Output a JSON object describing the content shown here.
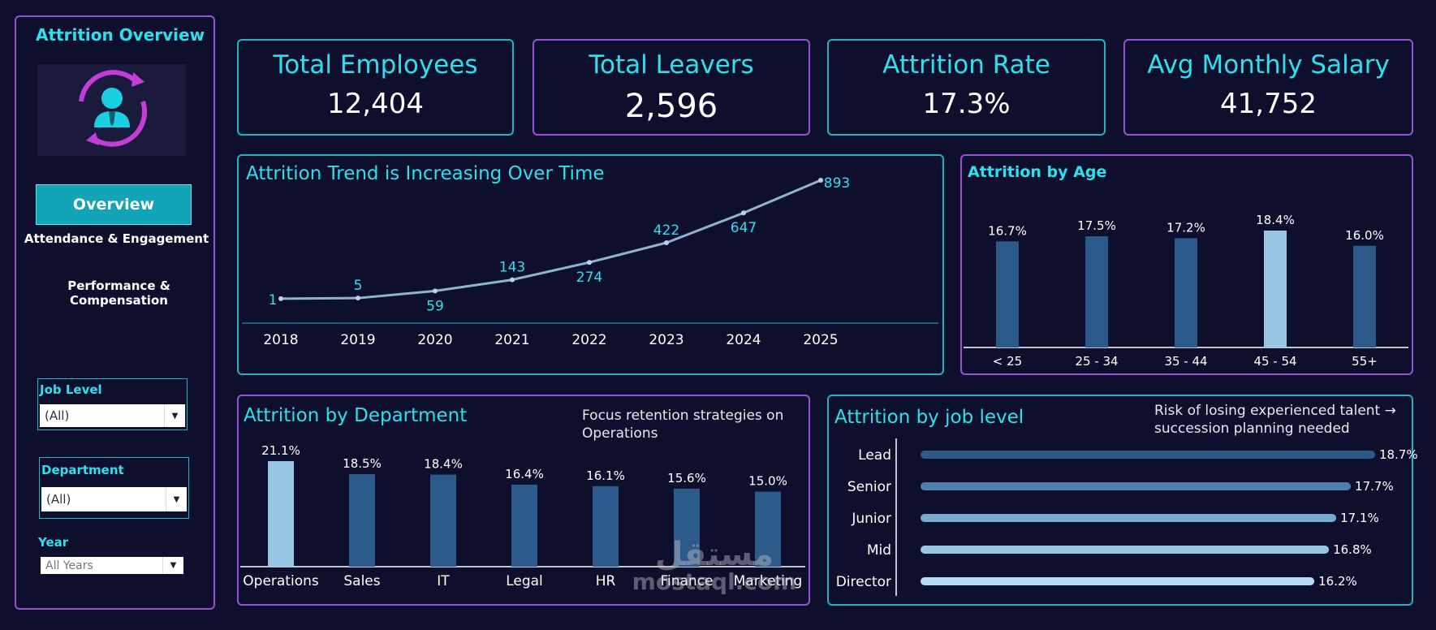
{
  "sidebar": {
    "title": "Attrition Overview",
    "nav": {
      "overview": "Overview",
      "attendance": "Attendance & Engagement",
      "performance": "Performance & Compensation"
    },
    "filters": {
      "job_level": {
        "label": "Job Level",
        "value": "(All)"
      },
      "department": {
        "label": "Department",
        "value": "(All)"
      },
      "year": {
        "label": "Year",
        "value": "All Years"
      }
    }
  },
  "kpis": [
    {
      "title": "Total Employees",
      "value": "12,404"
    },
    {
      "title": "Total Leavers",
      "value": "2,596"
    },
    {
      "title": "Attrition Rate",
      "value": "17.3%"
    },
    {
      "title": "Avg Monthly Salary",
      "value": "41,752"
    }
  ],
  "trend": {
    "title": "Attrition Trend is Increasing Over Time",
    "chart_data": {
      "type": "line",
      "x": [
        "2018",
        "2019",
        "2020",
        "2021",
        "2022",
        "2023",
        "2024",
        "2025"
      ],
      "values": [
        1,
        5,
        59,
        143,
        274,
        422,
        647,
        893
      ],
      "ylim": [
        0,
        893
      ],
      "grid": false
    }
  },
  "age": {
    "title": "Attrition by Age",
    "chart_data": {
      "type": "bar",
      "categories": [
        "< 25",
        "25 - 34",
        "35 - 44",
        "45 - 54",
        "55+"
      ],
      "values": [
        16.7,
        17.5,
        17.2,
        18.4,
        16.0
      ],
      "labels": [
        "16.7%",
        "17.5%",
        "17.2%",
        "18.4%",
        "16.0%"
      ],
      "highlight_index": 3
    }
  },
  "department": {
    "title": "Attrition by Department",
    "note": "Focus retention strategies on Operations",
    "chart_data": {
      "type": "bar",
      "categories": [
        "Operations",
        "Sales",
        "IT",
        "Legal",
        "HR",
        "Finance",
        "Marketing"
      ],
      "values": [
        21.1,
        18.5,
        18.4,
        16.4,
        16.1,
        15.6,
        15.0
      ],
      "labels": [
        "21.1%",
        "18.5%",
        "18.4%",
        "16.4%",
        "16.1%",
        "15.6%",
        "15.0%"
      ],
      "highlight_index": 0
    }
  },
  "joblevel": {
    "title": "Attrition by job level",
    "note_line1": "Risk of losing experienced talent →",
    "note_line2": "succession planning needed",
    "chart_data": {
      "type": "bar",
      "orientation": "horizontal",
      "categories": [
        "Lead",
        "Senior",
        "Junior",
        "Mid",
        "Director"
      ],
      "values": [
        18.7,
        17.7,
        17.1,
        16.8,
        16.2
      ],
      "labels": [
        "18.7%",
        "17.7%",
        "17.1%",
        "16.8%",
        "16.2%"
      ]
    }
  },
  "colors": {
    "accent": "#2de0ee",
    "purple": "#9b4fd6",
    "bar_dark": "#2c5a8a",
    "bar_light": "#9ac6e6",
    "line": "#8fb4d0"
  },
  "watermark": {
    "arabic": "مستقل",
    "latin": "mostaql.com"
  }
}
